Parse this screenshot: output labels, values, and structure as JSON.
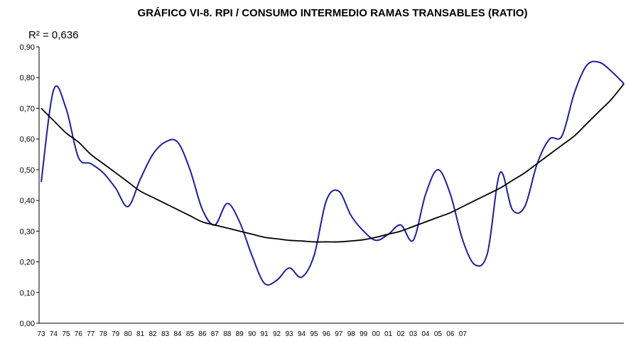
{
  "chart_data": {
    "type": "line",
    "title": "GRÁFICO VI-8. RPI / CONSUMO INTERMEDIO RAMAS TRANSABLES (RATIO)",
    "annotation": "R² = 0,636",
    "categories": [
      "73",
      "74",
      "75",
      "76",
      "77",
      "78",
      "79",
      "80",
      "81",
      "82",
      "83",
      "84",
      "85",
      "86",
      "87",
      "88",
      "89",
      "90",
      "91",
      "92",
      "93",
      "94",
      "95",
      "96",
      "97",
      "98",
      "99",
      "00",
      "01",
      "02",
      "03",
      "04",
      "05",
      "06",
      "07",
      null,
      null,
      null,
      null,
      null,
      null,
      null,
      null,
      null,
      null,
      null,
      null,
      null
    ],
    "series": [
      {
        "color": "#1f1f99",
        "values": [
          0.46,
          0.76,
          0.7,
          0.54,
          0.52,
          0.49,
          0.44,
          0.38,
          0.47,
          0.55,
          0.59,
          0.59,
          0.5,
          0.37,
          0.32,
          0.39,
          0.33,
          0.22,
          0.13,
          0.14,
          0.18,
          0.15,
          0.22,
          0.4,
          0.43,
          0.35,
          0.3,
          0.27,
          0.29,
          0.32,
          0.27,
          0.42,
          0.5,
          0.42,
          0.27,
          0.19,
          0.23,
          0.49,
          0.37,
          0.38,
          0.52,
          0.6,
          0.61,
          0.75,
          0.84,
          0.85,
          0.82,
          0.78
        ]
      },
      {
        "color": "#000000",
        "values": [
          0.7,
          0.66,
          0.62,
          0.59,
          0.55,
          0.52,
          0.49,
          0.46,
          0.43,
          0.41,
          0.39,
          0.37,
          0.35,
          0.33,
          0.32,
          0.31,
          0.3,
          0.29,
          0.28,
          0.275,
          0.27,
          0.268,
          0.265,
          0.265,
          0.265,
          0.268,
          0.272,
          0.28,
          0.29,
          0.3,
          0.315,
          0.33,
          0.345,
          0.36,
          0.38,
          0.4,
          0.42,
          0.44,
          0.465,
          0.49,
          0.52,
          0.55,
          0.58,
          0.61,
          0.65,
          0.69,
          0.73,
          0.78
        ]
      }
    ],
    "ylim": [
      0,
      0.9
    ],
    "yticks": [
      {
        "value": 0,
        "label": "0,00"
      },
      {
        "value": 0.1,
        "label": "0,10"
      },
      {
        "value": 0.2,
        "label": "0,20"
      },
      {
        "value": 0.3,
        "label": "0,30"
      },
      {
        "value": 0.4,
        "label": "0,40"
      },
      {
        "value": 0.5,
        "label": "0,50"
      },
      {
        "value": 0.6,
        "label": "0,60"
      },
      {
        "value": 0.7,
        "label": "0,70"
      },
      {
        "value": 0.8,
        "label": "0,80"
      },
      {
        "value": 0.9,
        "label": "0,90"
      }
    ],
    "grid": false
  }
}
